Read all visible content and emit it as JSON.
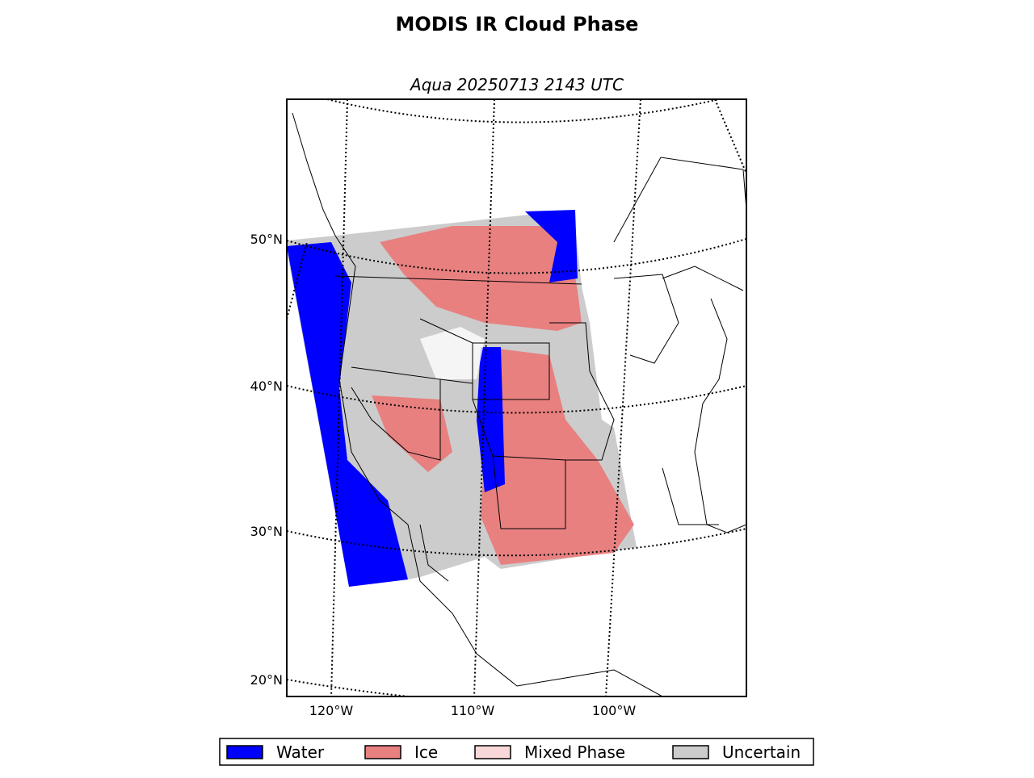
{
  "title": "MODIS IR Cloud Phase",
  "subtitle": "Aqua 20250713 2143 UTC",
  "lat_labels": [
    "50°N",
    "40°N",
    "30°N",
    "20°N"
  ],
  "lon_labels": [
    "120°W",
    "110°W",
    "100°W"
  ],
  "legend": [
    {
      "label": "Water",
      "color": "#0000ff"
    },
    {
      "label": "Ice",
      "color": "#e88080"
    },
    {
      "label": "Mixed Phase",
      "color": "#f8d8d8"
    },
    {
      "label": "Uncertain",
      "color": "#cccccc"
    }
  ]
}
